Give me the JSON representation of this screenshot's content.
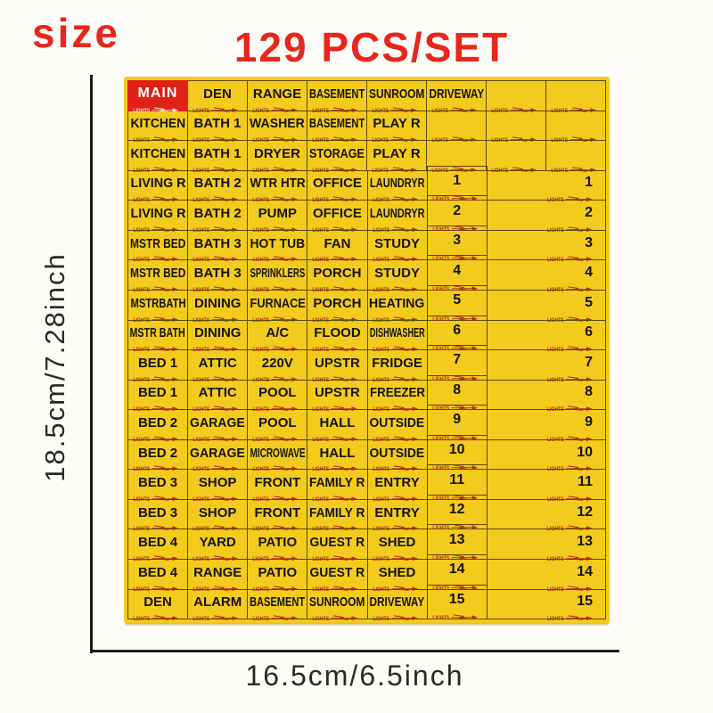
{
  "header": {
    "size_label": "size",
    "title": "129 PCS/SET"
  },
  "dimensions": {
    "height_label": "18.5cm/7.28inch",
    "width_label": "16.5cm/6.5inch"
  },
  "colors": {
    "accent_red": "#e8271c",
    "sheet_yellow": "#f2cb1d",
    "main_red": "#df2118",
    "arrow_red": "#ad3014",
    "cell_border": "#5e4708",
    "axis": "#1b1b1b",
    "dim_text": "#2c2a26"
  },
  "sheet": {
    "lights_label": "LIGHTS",
    "rows": [
      [
        {
          "t": "MAIN",
          "k": "main"
        },
        {
          "t": "DEN",
          "k": "label"
        },
        {
          "t": "RANGE",
          "k": "label"
        },
        {
          "t": "BASEMENT",
          "k": "label"
        },
        {
          "t": "SUNROOM",
          "k": "label"
        },
        {
          "t": "DRIVEWAY",
          "k": "label"
        },
        {
          "t": "",
          "k": "blank"
        },
        {
          "t": "",
          "k": "blank"
        }
      ],
      [
        {
          "t": "KITCHEN",
          "k": "label"
        },
        {
          "t": "BATH 1",
          "k": "label"
        },
        {
          "t": "WASHER",
          "k": "label"
        },
        {
          "t": "BASEMENT",
          "k": "label"
        },
        {
          "t": "PLAY R",
          "k": "label"
        },
        {
          "t": "",
          "k": "blank"
        },
        {
          "t": "",
          "k": "blank"
        },
        {
          "t": "",
          "k": "blank"
        }
      ],
      [
        {
          "t": "KITCHEN",
          "k": "label"
        },
        {
          "t": "BATH 1",
          "k": "label"
        },
        {
          "t": "DRYER",
          "k": "label"
        },
        {
          "t": "STORAGE",
          "k": "label"
        },
        {
          "t": "PLAY R",
          "k": "label"
        },
        {
          "t": "",
          "k": "blank"
        },
        {
          "t": "",
          "k": "blank"
        },
        {
          "t": "",
          "k": "blank"
        }
      ],
      [
        {
          "t": "LIVING R",
          "k": "label"
        },
        {
          "t": "BATH 2",
          "k": "label"
        },
        {
          "t": "WTR HTR",
          "k": "label"
        },
        {
          "t": "OFFICE",
          "k": "label"
        },
        {
          "t": "LAUNDRYR",
          "k": "label"
        },
        {
          "t": "1",
          "k": "num"
        },
        {
          "t": "1",
          "k": "wnum"
        }
      ],
      [
        {
          "t": "LIVING R",
          "k": "label"
        },
        {
          "t": "BATH 2",
          "k": "label"
        },
        {
          "t": "PUMP",
          "k": "label"
        },
        {
          "t": "OFFICE",
          "k": "label"
        },
        {
          "t": "LAUNDRYR",
          "k": "label"
        },
        {
          "t": "2",
          "k": "num"
        },
        {
          "t": "2",
          "k": "wnum"
        }
      ],
      [
        {
          "t": "MSTR BED",
          "k": "label"
        },
        {
          "t": "BATH 3",
          "k": "label"
        },
        {
          "t": "HOT TUB",
          "k": "label"
        },
        {
          "t": "FAN",
          "k": "label"
        },
        {
          "t": "STUDY",
          "k": "label"
        },
        {
          "t": "3",
          "k": "num"
        },
        {
          "t": "3",
          "k": "wnum"
        }
      ],
      [
        {
          "t": "MSTR BED",
          "k": "label"
        },
        {
          "t": "BATH 3",
          "k": "label"
        },
        {
          "t": "SPRINKLERS",
          "k": "label"
        },
        {
          "t": "PORCH",
          "k": "label"
        },
        {
          "t": "STUDY",
          "k": "label"
        },
        {
          "t": "4",
          "k": "num"
        },
        {
          "t": "4",
          "k": "wnum"
        }
      ],
      [
        {
          "t": "MSTRBATH",
          "k": "label"
        },
        {
          "t": "DINING",
          "k": "label"
        },
        {
          "t": "FURNACE",
          "k": "label"
        },
        {
          "t": "PORCH",
          "k": "label"
        },
        {
          "t": "HEATING",
          "k": "label"
        },
        {
          "t": "5",
          "k": "num"
        },
        {
          "t": "5",
          "k": "wnum"
        }
      ],
      [
        {
          "t": "MSTR BATH",
          "k": "label"
        },
        {
          "t": "DINING",
          "k": "label"
        },
        {
          "t": "A/C",
          "k": "label"
        },
        {
          "t": "FLOOD",
          "k": "label"
        },
        {
          "t": "DISHWASHER",
          "k": "label"
        },
        {
          "t": "6",
          "k": "num"
        },
        {
          "t": "6",
          "k": "wnum"
        }
      ],
      [
        {
          "t": "BED 1",
          "k": "label"
        },
        {
          "t": "ATTIC",
          "k": "label"
        },
        {
          "t": "220V",
          "k": "label"
        },
        {
          "t": "UPSTR",
          "k": "label"
        },
        {
          "t": "FRIDGE",
          "k": "label"
        },
        {
          "t": "7",
          "k": "num"
        },
        {
          "t": "7",
          "k": "wnum"
        }
      ],
      [
        {
          "t": "BED 1",
          "k": "label"
        },
        {
          "t": "ATTIC",
          "k": "label"
        },
        {
          "t": "POOL",
          "k": "label"
        },
        {
          "t": "UPSTR",
          "k": "label"
        },
        {
          "t": "FREEZER",
          "k": "label"
        },
        {
          "t": "8",
          "k": "num"
        },
        {
          "t": "8",
          "k": "wnum"
        }
      ],
      [
        {
          "t": "BED 2",
          "k": "label"
        },
        {
          "t": "GARAGE",
          "k": "label"
        },
        {
          "t": "POOL",
          "k": "label"
        },
        {
          "t": "HALL",
          "k": "label"
        },
        {
          "t": "OUTSIDE",
          "k": "label"
        },
        {
          "t": "9",
          "k": "num"
        },
        {
          "t": "9",
          "k": "wnum"
        }
      ],
      [
        {
          "t": "BED 2",
          "k": "label"
        },
        {
          "t": "GARAGE",
          "k": "label"
        },
        {
          "t": "MICROWAVE",
          "k": "label"
        },
        {
          "t": "HALL",
          "k": "label"
        },
        {
          "t": "OUTSIDE",
          "k": "label"
        },
        {
          "t": "10",
          "k": "num"
        },
        {
          "t": "10",
          "k": "wnum"
        }
      ],
      [
        {
          "t": "BED 3",
          "k": "label"
        },
        {
          "t": "SHOP",
          "k": "label"
        },
        {
          "t": "FRONT",
          "k": "label"
        },
        {
          "t": "FAMILY R",
          "k": "label"
        },
        {
          "t": "ENTRY",
          "k": "label"
        },
        {
          "t": "11",
          "k": "num"
        },
        {
          "t": "11",
          "k": "wnum"
        }
      ],
      [
        {
          "t": "BED 3",
          "k": "label"
        },
        {
          "t": "SHOP",
          "k": "label"
        },
        {
          "t": "FRONT",
          "k": "label"
        },
        {
          "t": "FAMILY R",
          "k": "label"
        },
        {
          "t": "ENTRY",
          "k": "label"
        },
        {
          "t": "12",
          "k": "num"
        },
        {
          "t": "12",
          "k": "wnum"
        }
      ],
      [
        {
          "t": "BED 4",
          "k": "label"
        },
        {
          "t": "YARD",
          "k": "label"
        },
        {
          "t": "PATIO",
          "k": "label"
        },
        {
          "t": "GUEST R",
          "k": "label"
        },
        {
          "t": "SHED",
          "k": "label"
        },
        {
          "t": "13",
          "k": "num"
        },
        {
          "t": "13",
          "k": "wnum"
        }
      ],
      [
        {
          "t": "BED 4",
          "k": "label"
        },
        {
          "t": "RANGE",
          "k": "label"
        },
        {
          "t": "PATIO",
          "k": "label"
        },
        {
          "t": "GUEST R",
          "k": "label"
        },
        {
          "t": "SHED",
          "k": "label"
        },
        {
          "t": "14",
          "k": "num"
        },
        {
          "t": "14",
          "k": "wnum"
        }
      ],
      [
        {
          "t": "DEN",
          "k": "label"
        },
        {
          "t": "ALARM",
          "k": "label"
        },
        {
          "t": "BASEMENT",
          "k": "label"
        },
        {
          "t": "SUNROOM",
          "k": "label"
        },
        {
          "t": "DRIVEWAY",
          "k": "label"
        },
        {
          "t": "15",
          "k": "num"
        },
        {
          "t": "15",
          "k": "wnum"
        }
      ]
    ]
  }
}
